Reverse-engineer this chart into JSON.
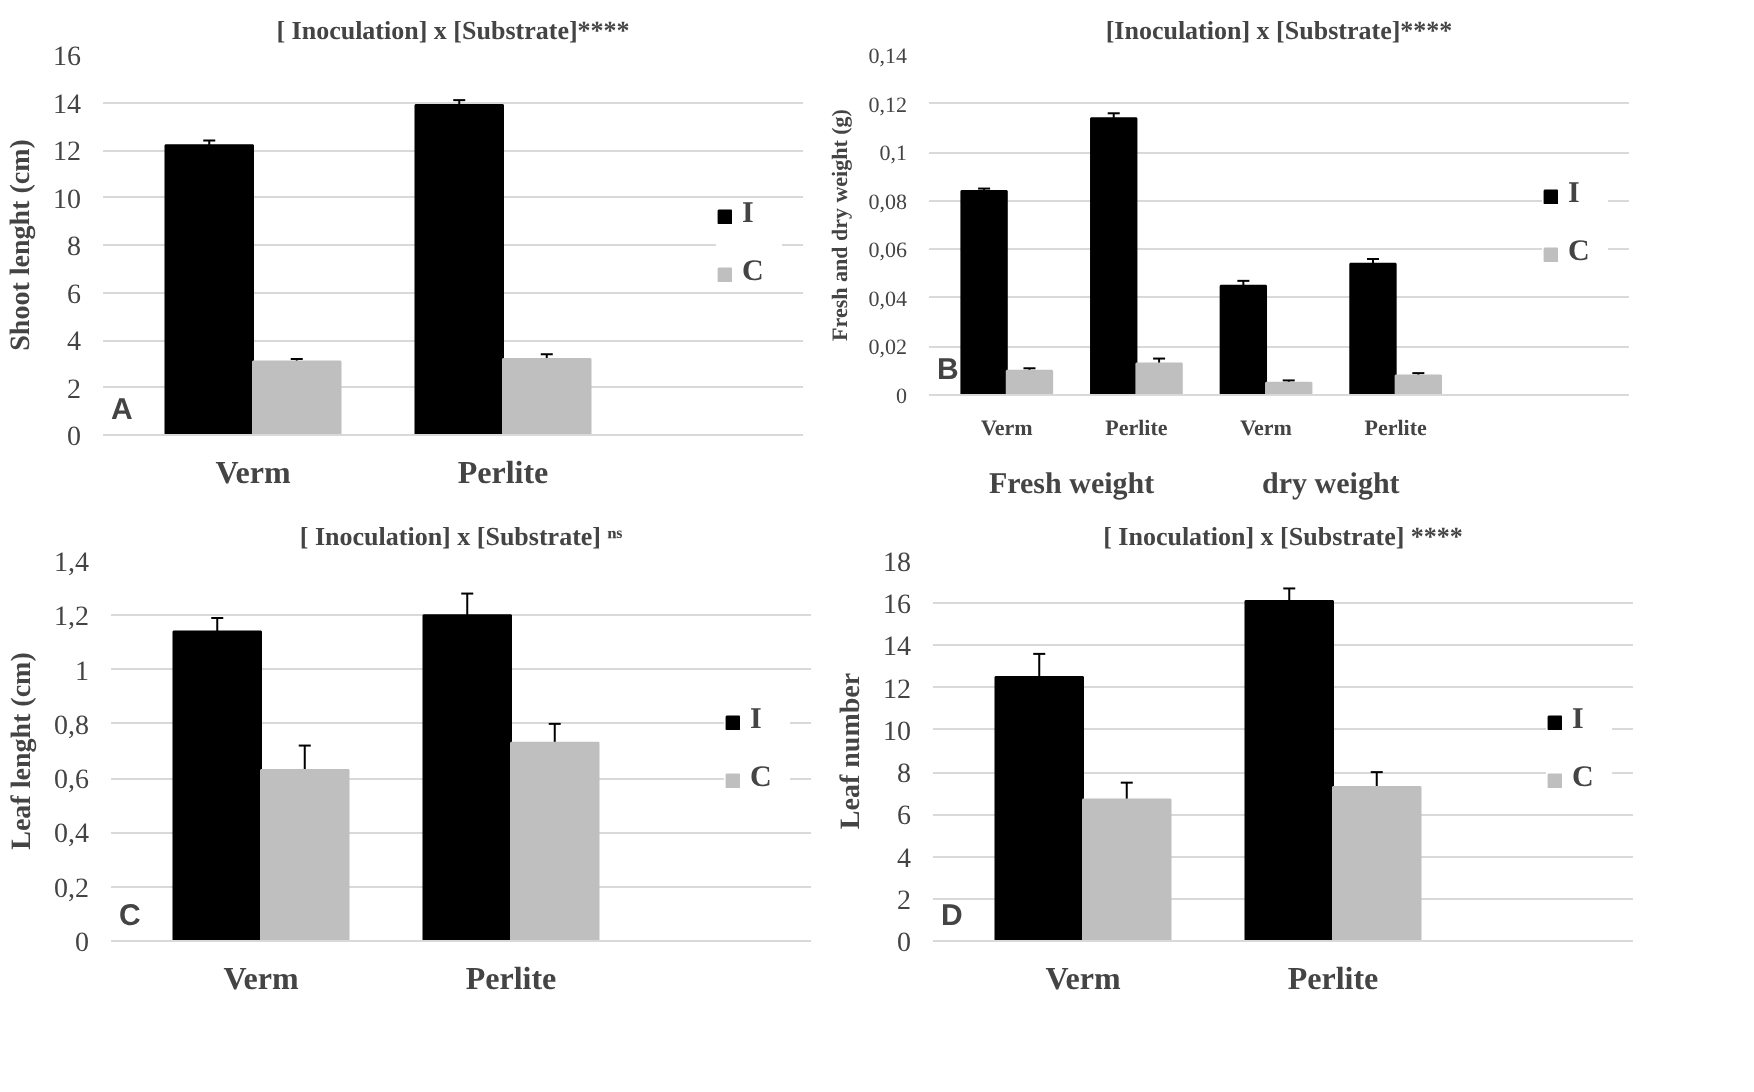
{
  "chart_data": [
    {
      "type": "bar",
      "title": "[ Inoculation] x [Substrate]****",
      "ylabel": "Shoot lenght (cm)",
      "categories": [
        "Verm",
        "Perlite"
      ],
      "series": [
        {
          "name": "I",
          "color": "#000000",
          "values": [
            12.2,
            13.9
          ],
          "errors": [
            0.2,
            0.2
          ]
        },
        {
          "name": "C",
          "color": "#bfbfbf",
          "values": [
            3.1,
            3.2
          ],
          "errors": [
            0.1,
            0.2
          ]
        }
      ],
      "ylim": [
        0,
        16
      ],
      "yticks": [
        0,
        2,
        4,
        6,
        8,
        10,
        12,
        14,
        16
      ],
      "grid": "y",
      "legend": "right",
      "annotations": [
        "A"
      ]
    },
    {
      "type": "bar",
      "title": "[Inoculation] x [Substrate]****",
      "ylabel": "Fresh and dry weight (g)",
      "categories": [
        "Verm",
        "Perlite",
        "Verm",
        "Perlite"
      ],
      "series": [
        {
          "name": "I",
          "color": "#000000",
          "values": [
            0.084,
            0.114,
            0.045,
            0.054
          ],
          "errors": [
            0.001,
            0.002,
            0.002,
            0.002
          ]
        },
        {
          "name": "C",
          "color": "#bfbfbf",
          "values": [
            0.01,
            0.013,
            0.005,
            0.008
          ],
          "errors": [
            0.001,
            0.002,
            0.001,
            0.001
          ]
        }
      ],
      "ylim": [
        0,
        0.14
      ],
      "yticks": [
        0,
        {
          "value": 0.02,
          "label": "0,02"
        },
        {
          "value": 0.04,
          "label": "0,04"
        },
        {
          "value": 0.06,
          "label": "0,06"
        },
        {
          "value": 0.08,
          "label": "0,08"
        },
        {
          "value": 0.1,
          "label": "0,1"
        },
        {
          "value": 0.12,
          "label": "0,12"
        },
        {
          "value": 0.14,
          "label": "0,14"
        }
      ],
      "grid": "y",
      "legend": "right",
      "annotations": [
        "B",
        "Fresh weight",
        "dry weight"
      ]
    },
    {
      "type": "bar",
      "title": "[ Inoculation] x [Substrate] ⁿˢ",
      "ylabel": "Leaf lenght (cm)",
      "categories": [
        "Verm",
        "Perlite"
      ],
      "series": [
        {
          "name": "I",
          "color": "#000000",
          "values": [
            1.14,
            1.2
          ],
          "errors": [
            0.05,
            0.08
          ]
        },
        {
          "name": "C",
          "color": "#bfbfbf",
          "values": [
            0.63,
            0.73
          ],
          "errors": [
            0.09,
            0.07
          ]
        }
      ],
      "ylim": [
        0,
        1.4
      ],
      "yticks": [
        0,
        {
          "value": 0.2,
          "label": "0,2"
        },
        {
          "value": 0.4,
          "label": "0,4"
        },
        {
          "value": 0.6,
          "label": "0,6"
        },
        {
          "value": 0.8,
          "label": "0,8"
        },
        1,
        {
          "value": 1.2,
          "label": "1,2"
        },
        {
          "value": 1.4,
          "label": "1,4"
        }
      ],
      "grid": "y",
      "legend": "right",
      "annotations": [
        "C"
      ]
    },
    {
      "type": "bar",
      "title": "[ Inoculation] x [Substrate] ****",
      "ylabel": "Leaf number",
      "categories": [
        "Verm",
        "Perlite"
      ],
      "series": [
        {
          "name": "I",
          "color": "#000000",
          "values": [
            12.5,
            16.1
          ],
          "errors": [
            1.1,
            0.6
          ]
        },
        {
          "name": "C",
          "color": "#bfbfbf",
          "values": [
            6.7,
            7.3
          ],
          "errors": [
            0.8,
            0.7
          ]
        }
      ],
      "ylim": [
        0,
        18
      ],
      "yticks": [
        0,
        2,
        4,
        6,
        8,
        10,
        12,
        14,
        16,
        18
      ],
      "grid": "y",
      "legend": "right",
      "annotations": [
        "D"
      ]
    }
  ]
}
